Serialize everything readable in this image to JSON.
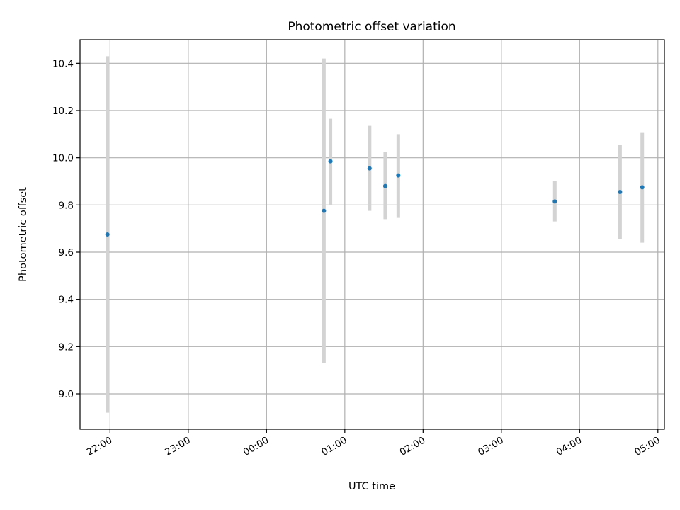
{
  "chart_data": {
    "type": "scatter",
    "title": "Photometric offset variation",
    "xlabel": "UTC time",
    "ylabel": "Photometric offset",
    "x_ticks": [
      "22:00",
      "23:00",
      "00:00",
      "01:00",
      "02:00",
      "03:00",
      "04:00",
      "05:00"
    ],
    "y_ticks": [
      "9.0",
      "9.2",
      "9.4",
      "9.6",
      "9.8",
      "10.0",
      "10.2",
      "10.4"
    ],
    "xlim": [
      "21:37",
      "05:05"
    ],
    "ylim": [
      8.85,
      10.5
    ],
    "grid": true,
    "colors": {
      "point": "#1f77b4",
      "errorbar": "#d3d3d3",
      "grid": "#b0b0b0"
    },
    "points": [
      {
        "time": "21:58",
        "y": 9.675,
        "low": 8.92,
        "high": 10.43
      },
      {
        "time": "00:44",
        "y": 9.775,
        "low": 9.13,
        "high": 10.42
      },
      {
        "time": "00:49",
        "y": 9.985,
        "low": 9.8,
        "high": 10.165
      },
      {
        "time": "01:19",
        "y": 9.955,
        "low": 9.775,
        "high": 10.135
      },
      {
        "time": "01:31",
        "y": 9.88,
        "low": 9.74,
        "high": 10.025
      },
      {
        "time": "01:41",
        "y": 9.925,
        "low": 9.745,
        "high": 10.1
      },
      {
        "time": "03:41",
        "y": 9.815,
        "low": 9.73,
        "high": 9.9
      },
      {
        "time": "04:31",
        "y": 9.855,
        "low": 9.655,
        "high": 10.055
      },
      {
        "time": "04:48",
        "y": 9.875,
        "low": 9.64,
        "high": 10.105
      }
    ]
  }
}
